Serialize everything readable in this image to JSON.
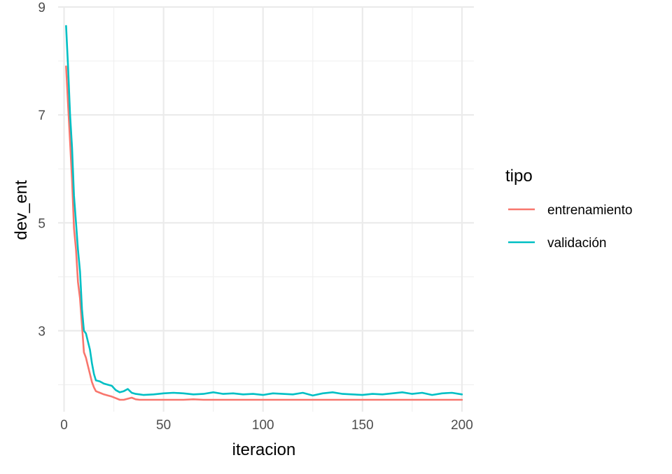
{
  "chart_data": {
    "type": "line",
    "xlabel": "iteracion",
    "ylabel": "dev_ent",
    "xlim": [
      -3,
      206
    ],
    "ylim": [
      1.5,
      9.0
    ],
    "x_ticks": [
      0,
      50,
      100,
      150,
      200
    ],
    "x_tick_labels": [
      "0",
      "50",
      "100",
      "150",
      "200"
    ],
    "y_ticks": [
      3,
      5,
      7,
      9
    ],
    "y_tick_labels": [
      "3",
      "5",
      "7",
      "9"
    ],
    "grid": true,
    "legend": {
      "title": "tipo",
      "position": "right"
    },
    "series": [
      {
        "name": "entrenamiento",
        "color": "#F8766D",
        "points": [
          [
            1,
            7.9
          ],
          [
            2,
            7.2
          ],
          [
            3,
            6.5
          ],
          [
            4,
            5.8
          ],
          [
            5,
            4.9
          ],
          [
            6,
            4.5
          ],
          [
            7,
            3.9
          ],
          [
            8,
            3.6
          ],
          [
            9,
            3.1
          ],
          [
            10,
            2.6
          ],
          [
            11,
            2.5
          ],
          [
            12,
            2.35
          ],
          [
            13,
            2.2
          ],
          [
            14,
            2.05
          ],
          [
            15,
            1.95
          ],
          [
            16,
            1.88
          ],
          [
            18,
            1.85
          ],
          [
            20,
            1.82
          ],
          [
            22,
            1.8
          ],
          [
            24,
            1.78
          ],
          [
            26,
            1.75
          ],
          [
            28,
            1.72
          ],
          [
            30,
            1.72
          ],
          [
            32,
            1.74
          ],
          [
            34,
            1.76
          ],
          [
            36,
            1.73
          ],
          [
            38,
            1.72
          ],
          [
            40,
            1.72
          ],
          [
            45,
            1.72
          ],
          [
            50,
            1.72
          ],
          [
            55,
            1.72
          ],
          [
            60,
            1.72
          ],
          [
            65,
            1.73
          ],
          [
            70,
            1.72
          ],
          [
            75,
            1.72
          ],
          [
            80,
            1.72
          ],
          [
            85,
            1.72
          ],
          [
            90,
            1.72
          ],
          [
            95,
            1.72
          ],
          [
            100,
            1.72
          ],
          [
            110,
            1.72
          ],
          [
            120,
            1.72
          ],
          [
            130,
            1.72
          ],
          [
            140,
            1.72
          ],
          [
            150,
            1.72
          ],
          [
            160,
            1.72
          ],
          [
            170,
            1.72
          ],
          [
            180,
            1.72
          ],
          [
            190,
            1.72
          ],
          [
            200,
            1.72
          ]
        ]
      },
      {
        "name": "validación",
        "color": "#00BFC4",
        "points": [
          [
            1,
            8.65
          ],
          [
            2,
            7.9
          ],
          [
            3,
            7.0
          ],
          [
            4,
            6.4
          ],
          [
            5,
            5.5
          ],
          [
            6,
            5.0
          ],
          [
            7,
            4.5
          ],
          [
            8,
            4.1
          ],
          [
            9,
            3.4
          ],
          [
            10,
            3.0
          ],
          [
            11,
            2.95
          ],
          [
            12,
            2.8
          ],
          [
            13,
            2.65
          ],
          [
            14,
            2.4
          ],
          [
            15,
            2.2
          ],
          [
            16,
            2.08
          ],
          [
            18,
            2.06
          ],
          [
            20,
            2.02
          ],
          [
            22,
            2.0
          ],
          [
            24,
            1.98
          ],
          [
            26,
            1.9
          ],
          [
            28,
            1.86
          ],
          [
            30,
            1.88
          ],
          [
            32,
            1.92
          ],
          [
            34,
            1.85
          ],
          [
            36,
            1.83
          ],
          [
            38,
            1.82
          ],
          [
            40,
            1.81
          ],
          [
            45,
            1.82
          ],
          [
            50,
            1.84
          ],
          [
            55,
            1.85
          ],
          [
            60,
            1.84
          ],
          [
            65,
            1.82
          ],
          [
            70,
            1.83
          ],
          [
            75,
            1.86
          ],
          [
            80,
            1.83
          ],
          [
            85,
            1.84
          ],
          [
            90,
            1.82
          ],
          [
            95,
            1.83
          ],
          [
            100,
            1.81
          ],
          [
            105,
            1.84
          ],
          [
            110,
            1.83
          ],
          [
            115,
            1.82
          ],
          [
            120,
            1.85
          ],
          [
            125,
            1.8
          ],
          [
            130,
            1.84
          ],
          [
            135,
            1.86
          ],
          [
            140,
            1.83
          ],
          [
            145,
            1.82
          ],
          [
            150,
            1.81
          ],
          [
            155,
            1.83
          ],
          [
            160,
            1.82
          ],
          [
            165,
            1.84
          ],
          [
            170,
            1.86
          ],
          [
            175,
            1.83
          ],
          [
            180,
            1.85
          ],
          [
            185,
            1.81
          ],
          [
            190,
            1.84
          ],
          [
            195,
            1.85
          ],
          [
            200,
            1.82
          ]
        ]
      }
    ]
  }
}
